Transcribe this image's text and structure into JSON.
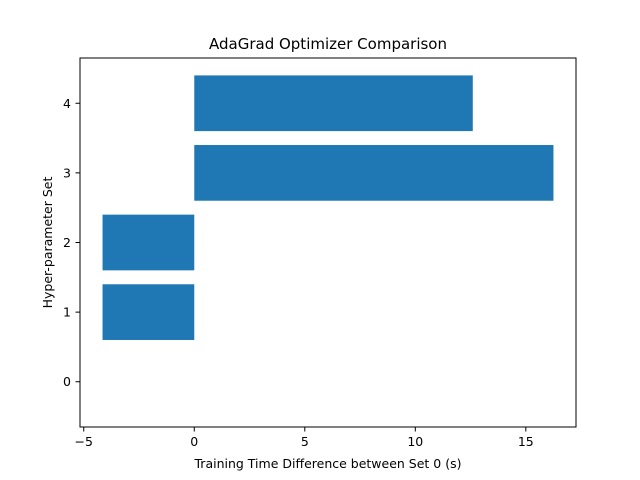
{
  "chart_data": {
    "type": "bar",
    "orientation": "horizontal",
    "title": "AdaGrad Optimizer Comparison",
    "xlabel": "Training Time Difference between Set 0 (s)",
    "ylabel": "Hyper-parameter Set",
    "categories": [
      "0",
      "1",
      "2",
      "3",
      "4"
    ],
    "values": [
      0,
      -4.15,
      -4.15,
      16.25,
      12.6
    ],
    "xlim": [
      -5.17,
      17.27
    ],
    "ylim": [
      -0.65,
      4.65
    ],
    "xticks": [
      -5,
      0,
      5,
      10,
      15
    ],
    "yticks": [
      0,
      1,
      2,
      3,
      4
    ],
    "bar_color": "#1f77b4",
    "grid": false,
    "legend": "none"
  }
}
